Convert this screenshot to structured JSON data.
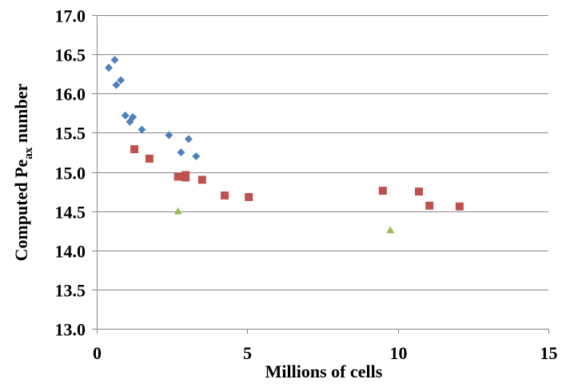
{
  "chart_data": {
    "type": "scatter",
    "title": "",
    "xlabel": "Millions of cells",
    "ylabel": {
      "prefix": "Computed Pe",
      "subscript": "ax",
      "suffix": " number"
    },
    "xlim": [
      0,
      15
    ],
    "ylim": [
      13.0,
      17.0
    ],
    "x_ticks": [
      "0",
      "5",
      "10",
      "15"
    ],
    "y_ticks": [
      "13.0",
      "13.5",
      "14.0",
      "14.5",
      "15.0",
      "15.5",
      "16.0",
      "16.5",
      "17.0"
    ],
    "grid": "horizontal",
    "legend": "none",
    "series": [
      {
        "marker": "diamond",
        "color": "#4f81bd",
        "points": [
          [
            0.4,
            16.33
          ],
          [
            0.6,
            16.43
          ],
          [
            0.65,
            16.11
          ],
          [
            0.8,
            16.17
          ],
          [
            0.95,
            15.72
          ],
          [
            1.1,
            15.64
          ],
          [
            1.2,
            15.7
          ],
          [
            1.5,
            15.54
          ],
          [
            2.4,
            15.47
          ],
          [
            2.8,
            15.25
          ],
          [
            3.05,
            15.42
          ],
          [
            3.3,
            15.2
          ]
        ]
      },
      {
        "marker": "square",
        "color": "#c0504d",
        "points": [
          [
            1.25,
            15.29
          ],
          [
            1.75,
            15.17
          ],
          [
            2.7,
            14.94
          ],
          [
            2.95,
            14.93
          ],
          [
            2.95,
            14.96
          ],
          [
            3.5,
            14.9
          ],
          [
            4.25,
            14.7
          ],
          [
            5.05,
            14.68
          ],
          [
            9.5,
            14.76
          ],
          [
            10.7,
            14.75
          ],
          [
            11.05,
            14.57
          ],
          [
            12.05,
            14.56
          ]
        ]
      },
      {
        "marker": "triangle",
        "color": "#9bbb59",
        "points": [
          [
            2.7,
            14.5
          ],
          [
            9.75,
            14.26
          ]
        ]
      }
    ]
  }
}
